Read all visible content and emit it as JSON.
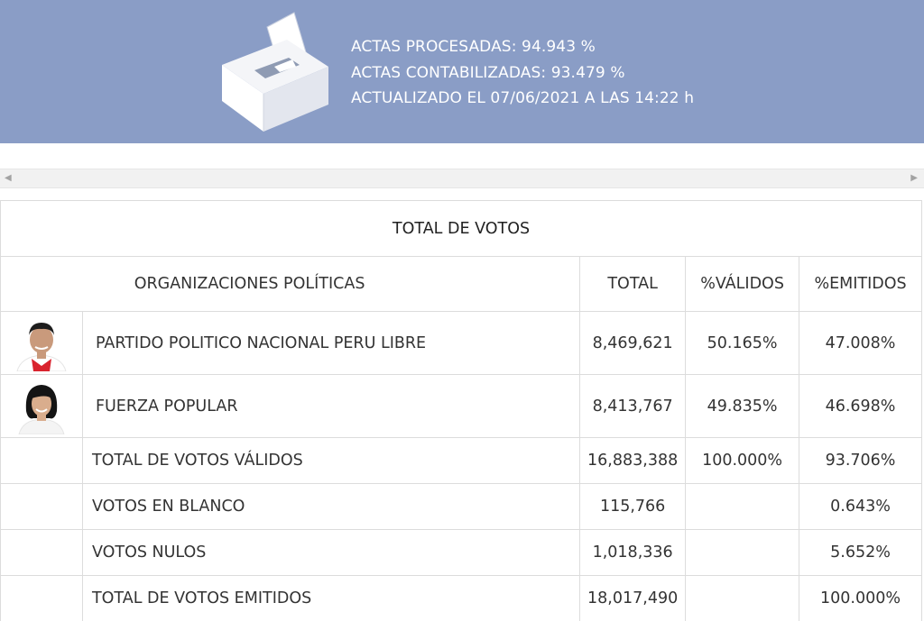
{
  "banner": {
    "line1": "ACTAS PROCESADAS: 94.943 %",
    "line2": "ACTAS CONTABILIZADAS: 93.479 %",
    "line3": "ACTUALIZADO EL 07/06/2021 A LAS 14:22 h",
    "icon": "ballot-box-icon",
    "bg_color": "#8a9dc6"
  },
  "scrollbar": {
    "left_arrow": "◀",
    "right_arrow": "▶"
  },
  "table": {
    "title": "TOTAL DE VOTOS",
    "headers": {
      "org": "ORGANIZACIONES POLÍTICAS",
      "total": "TOTAL",
      "pct_valid": "%VÁLIDOS",
      "pct_emitted": "%EMITIDOS"
    },
    "rows": [
      {
        "org": "PARTIDO POLITICO NACIONAL PERU LIBRE",
        "total": "8,469,621",
        "pct_valid": "50.165%",
        "pct_emitted": "47.008%",
        "icon": "candidate-photo-male"
      },
      {
        "org": "FUERZA POPULAR",
        "total": "8,413,767",
        "pct_valid": "49.835%",
        "pct_emitted": "46.698%",
        "icon": "candidate-photo-female"
      },
      {
        "org": "TOTAL DE VOTOS VÁLIDOS",
        "total": "16,883,388",
        "pct_valid": "100.000%",
        "pct_emitted": "93.706%"
      },
      {
        "org": "VOTOS EN BLANCO",
        "total": "115,766",
        "pct_valid": "",
        "pct_emitted": "0.643%"
      },
      {
        "org": "VOTOS NULOS",
        "total": "1,018,336",
        "pct_valid": "",
        "pct_emitted": "5.652%"
      },
      {
        "org": "TOTAL DE VOTOS EMITIDOS",
        "total": "18,017,490",
        "pct_valid": "",
        "pct_emitted": "100.000%"
      }
    ]
  }
}
